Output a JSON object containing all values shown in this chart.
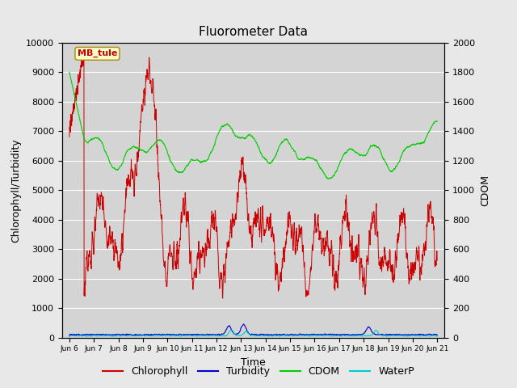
{
  "title": "Fluorometer Data",
  "xlabel": "Time",
  "ylabel_left": "Chlorophyll/Turbidity",
  "ylabel_right": "CDOM",
  "ylim_left": [
    0,
    10000
  ],
  "ylim_right": [
    0,
    2000
  ],
  "yticks_left": [
    0,
    1000,
    2000,
    3000,
    4000,
    5000,
    6000,
    7000,
    8000,
    9000,
    10000
  ],
  "yticks_right": [
    0,
    200,
    400,
    600,
    800,
    1000,
    1200,
    1400,
    1600,
    1800,
    2000
  ],
  "xtick_labels": [
    "Jun 6",
    "Jun 7",
    "Jun 8",
    "Jun 9",
    "Jun 10",
    "Jun 11",
    "Jun 12",
    "Jun 13",
    "Jun 14",
    "Jun 15",
    "Jun 16",
    "Jun 17",
    "Jun 18",
    "Jun 19",
    "Jun 20",
    "Jun 21"
  ],
  "annotation_text": "MB_tule",
  "annotation_color": "#cc0000",
  "annotation_bg": "#ffffcc",
  "annotation_border": "#aa8800",
  "chlorophyll_color": "#cc0000",
  "turbidity_color": "#0000cc",
  "cdom_color": "#00cc00",
  "waterp_color": "#00cccc",
  "bg_color": "#e8e8e8",
  "plot_bg": "#d4d4d4",
  "grid_color": "#ffffff",
  "title_fontsize": 11,
  "axis_fontsize": 9,
  "tick_fontsize": 8,
  "label_fontsize": 9
}
